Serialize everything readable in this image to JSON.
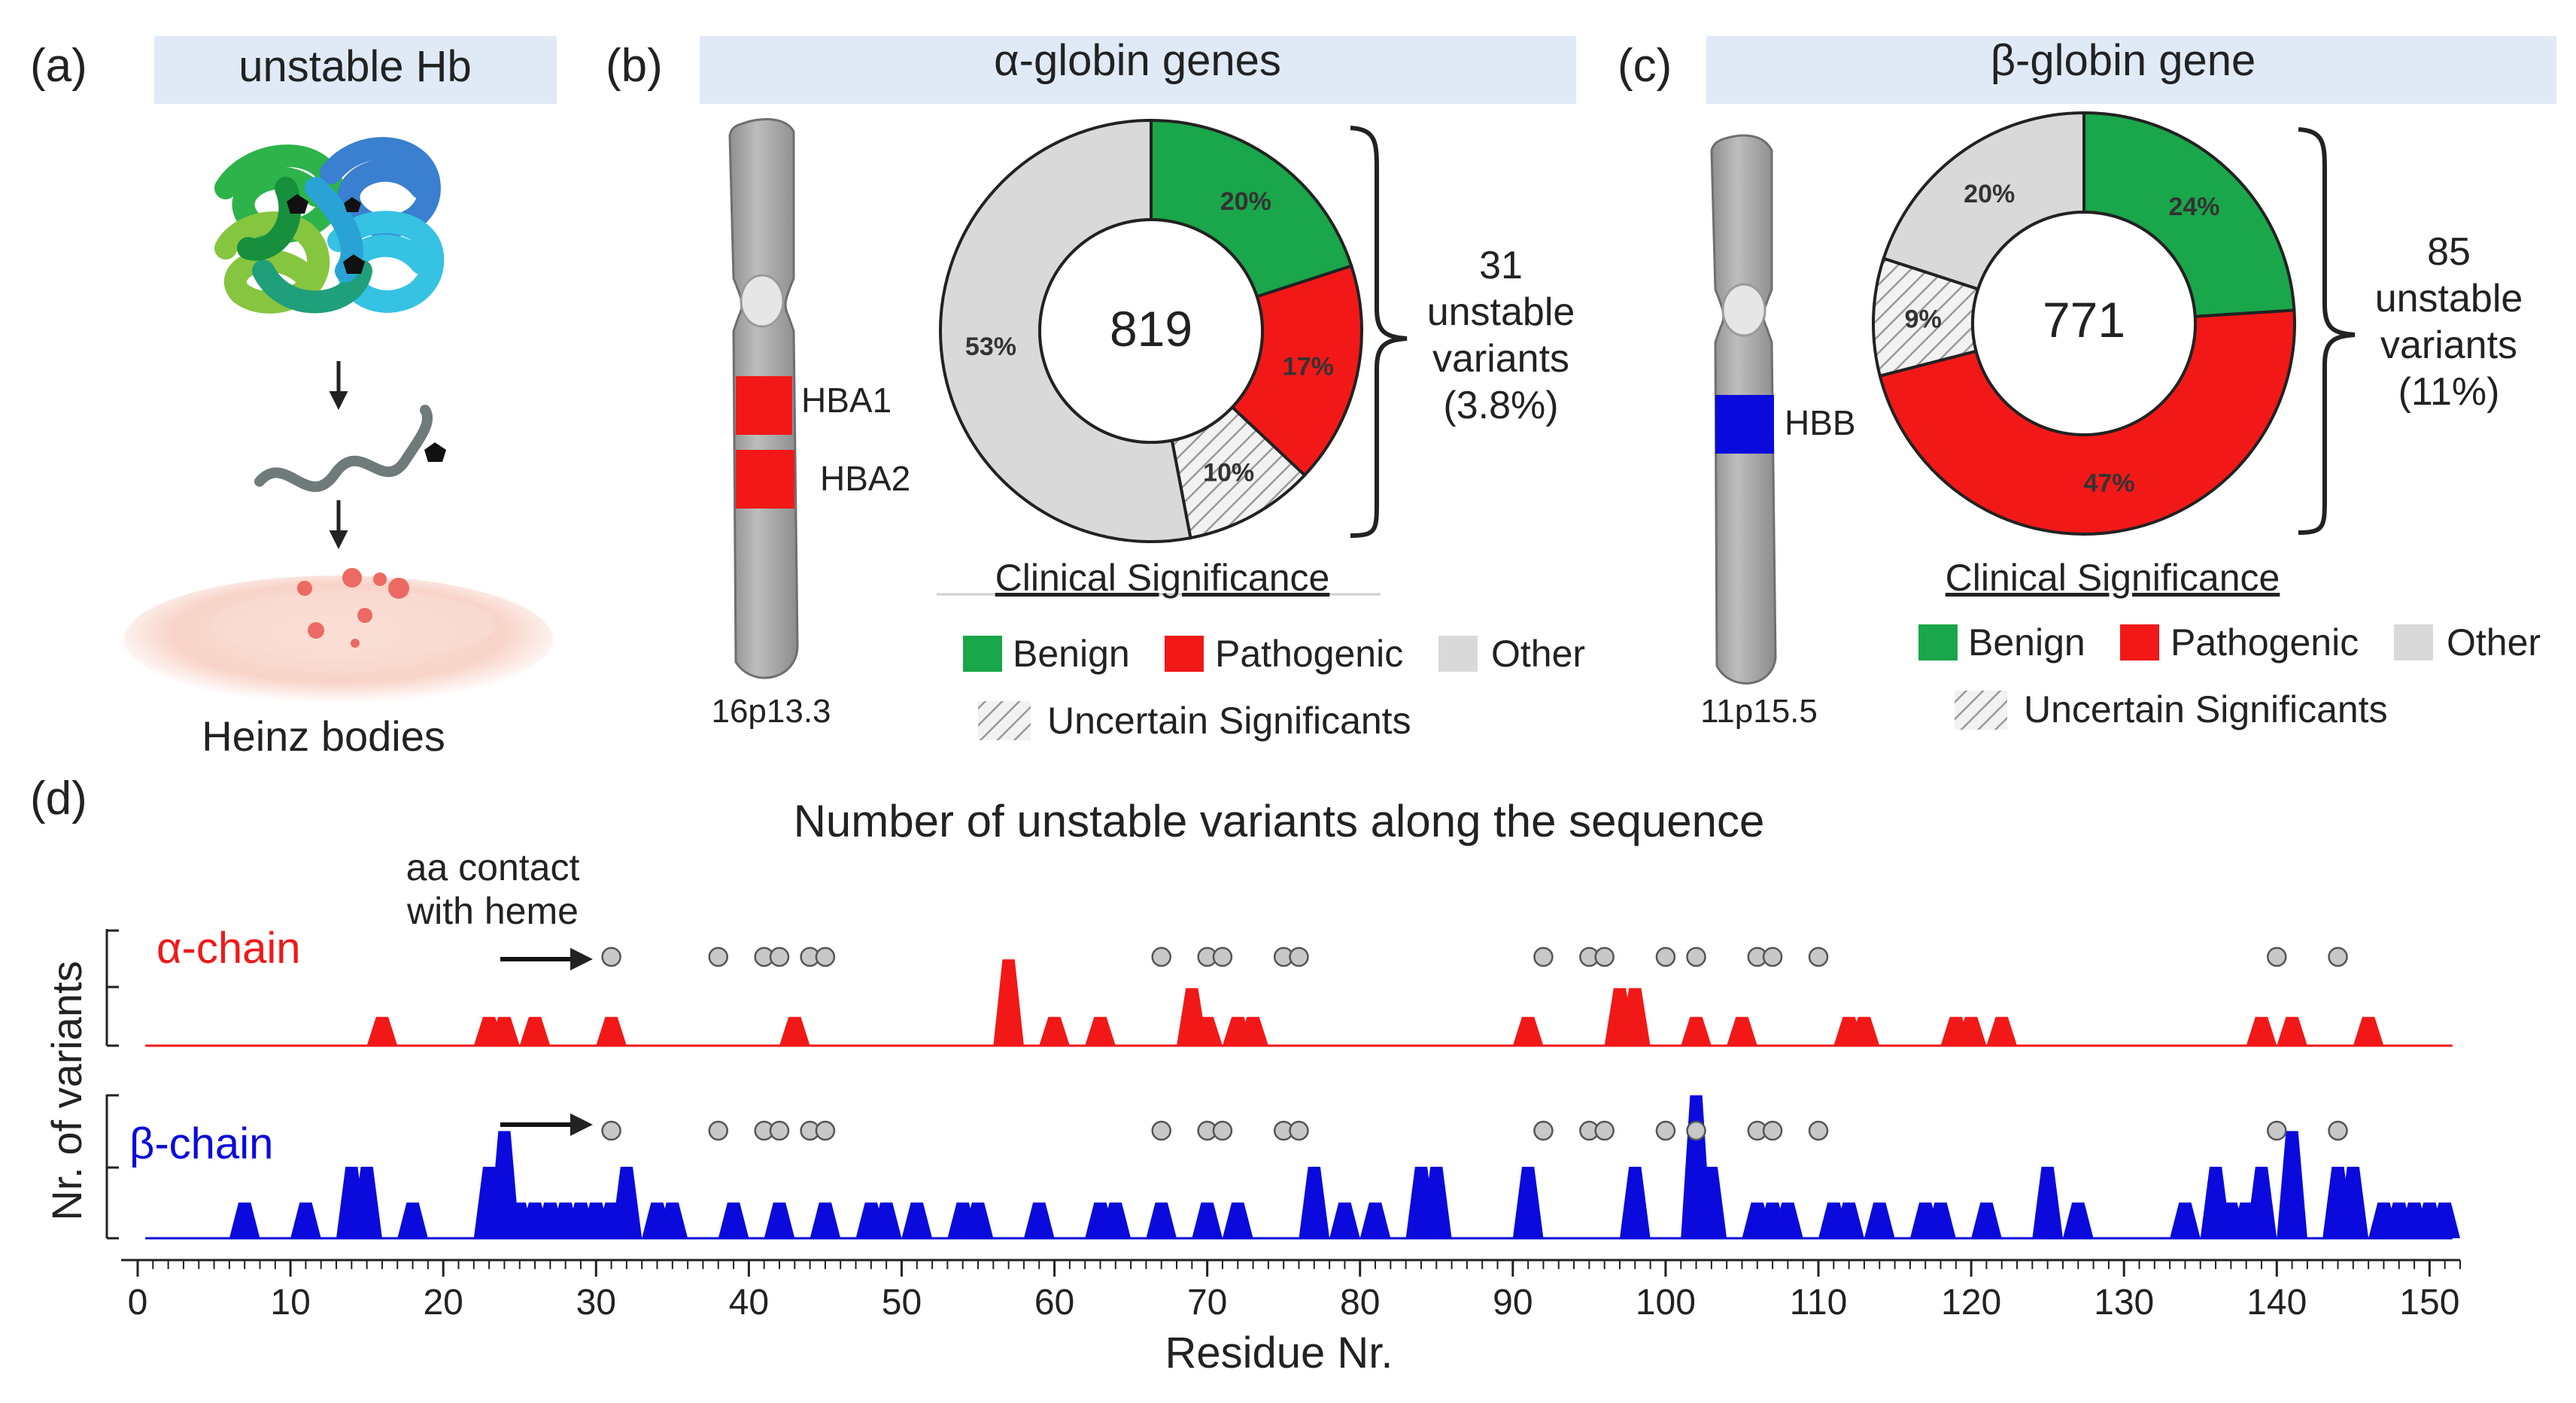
{
  "panel_a": {
    "letter": "(a)",
    "header": "unstable Hb",
    "caption": "Heinz bodies"
  },
  "panel_b": {
    "letter": "(b)",
    "header": "α-globin genes",
    "gene1": "HBA1",
    "gene2": "HBA2",
    "locus": "16p13.3",
    "donut": {
      "total": "819",
      "slices": [
        {
          "category": "Benign",
          "percent": 20,
          "label": "20%",
          "color": "#1aa64a"
        },
        {
          "category": "Pathogenic",
          "percent": 17,
          "label": "17%",
          "color": "#f21818"
        },
        {
          "category": "Uncertain Significants",
          "percent": 10,
          "label": "10%",
          "color": "#d9d9d9"
        },
        {
          "category": "Other",
          "percent": 53,
          "label": "53%",
          "color": "#d9d9d9"
        }
      ]
    },
    "brace_lines": [
      "31",
      "unstable",
      "variants",
      "(3.8%)"
    ],
    "legend_title": "Clinical Significance",
    "legend": {
      "benign": "Benign",
      "pathogenic": "Pathogenic",
      "other": "Other",
      "uncertain": "Uncertain Significants"
    }
  },
  "panel_c": {
    "letter": "(c)",
    "header": "β-globin gene",
    "gene": "HBB",
    "locus": "11p15.5",
    "donut": {
      "total": "771",
      "slices": [
        {
          "category": "Benign",
          "percent": 24,
          "label": "24%",
          "color": "#1aa64a"
        },
        {
          "category": "Pathogenic",
          "percent": 47,
          "label": "47%",
          "color": "#f21818"
        },
        {
          "category": "Uncertain Significants",
          "percent": 9,
          "label": "9%",
          "color": "#d9d9d9"
        },
        {
          "category": "Other",
          "percent": 20,
          "label": "20%",
          "color": "#d9d9d9"
        }
      ]
    },
    "brace_lines": [
      "85",
      "unstable",
      "variants",
      "(11%)"
    ],
    "legend_title": "Clinical Significance",
    "legend": {
      "benign": "Benign",
      "pathogenic": "Pathogenic",
      "other": "Other",
      "uncertain": "Uncertain Significants"
    }
  },
  "panel_d": {
    "letter": "(d)",
    "title": "Number of unstable variants along the sequence",
    "heme_note": [
      "aa contact",
      "with heme"
    ],
    "ylabel": "Nr. of variants",
    "xlabel": "Residue Nr.",
    "alpha_label": "α-chain",
    "beta_label": "β-chain",
    "alpha_color": "#f21818",
    "beta_color": "#0a0adc"
  },
  "chart_data": {
    "type": "area",
    "title": "Number of unstable variants along the sequence",
    "xlabel": "Residue Nr.",
    "ylabel": "Nr. of variants",
    "xlim": [
      0,
      152
    ],
    "x_ticks": [
      0,
      10,
      20,
      30,
      40,
      50,
      60,
      70,
      80,
      90,
      100,
      110,
      120,
      130,
      140,
      150
    ],
    "ylim": [
      0,
      2
    ],
    "heme_contact_residues": [
      31,
      38,
      41,
      42,
      44,
      45,
      67,
      70,
      71,
      75,
      76,
      92,
      95,
      96,
      100,
      102,
      106,
      107,
      110,
      140,
      144
    ],
    "series": [
      {
        "name": "α-chain",
        "peaks": [
          [
            16,
            0.5
          ],
          [
            23,
            0.5
          ],
          [
            24,
            0.5
          ],
          [
            26,
            0.5
          ],
          [
            31,
            0.5
          ],
          [
            43,
            0.5
          ],
          [
            57,
            1.5
          ],
          [
            60,
            0.5
          ],
          [
            63,
            0.5
          ],
          [
            69,
            1
          ],
          [
            70,
            0.5
          ],
          [
            72,
            0.5
          ],
          [
            73,
            0.5
          ],
          [
            91,
            0.5
          ],
          [
            97,
            1
          ],
          [
            98,
            1
          ],
          [
            102,
            0.5
          ],
          [
            105,
            0.5
          ],
          [
            112,
            0.5
          ],
          [
            113,
            0.5
          ],
          [
            119,
            0.5
          ],
          [
            120,
            0.5
          ],
          [
            122,
            0.5
          ],
          [
            139,
            0.5
          ],
          [
            141,
            0.5
          ],
          [
            146,
            0.5
          ]
        ]
      },
      {
        "name": "β-chain",
        "peaks": [
          [
            7,
            0.5
          ],
          [
            11,
            0.5
          ],
          [
            14,
            1
          ],
          [
            15,
            1
          ],
          [
            18,
            0.5
          ],
          [
            23,
            1
          ],
          [
            24,
            1.5
          ],
          [
            25,
            0.5
          ],
          [
            26,
            0.5
          ],
          [
            27,
            0.5
          ],
          [
            28,
            0.5
          ],
          [
            29,
            0.5
          ],
          [
            30,
            0.5
          ],
          [
            31,
            0.5
          ],
          [
            32,
            1
          ],
          [
            34,
            0.5
          ],
          [
            35,
            0.5
          ],
          [
            39,
            0.5
          ],
          [
            42,
            0.5
          ],
          [
            45,
            0.5
          ],
          [
            48,
            0.5
          ],
          [
            49,
            0.5
          ],
          [
            51,
            0.5
          ],
          [
            54,
            0.5
          ],
          [
            55,
            0.5
          ],
          [
            59,
            0.5
          ],
          [
            63,
            0.5
          ],
          [
            64,
            0.5
          ],
          [
            67,
            0.5
          ],
          [
            70,
            0.5
          ],
          [
            72,
            0.5
          ],
          [
            77,
            1
          ],
          [
            79,
            0.5
          ],
          [
            81,
            0.5
          ],
          [
            84,
            1
          ],
          [
            85,
            1
          ],
          [
            91,
            1
          ],
          [
            98,
            1
          ],
          [
            102,
            2
          ],
          [
            103,
            1
          ],
          [
            106,
            0.5
          ],
          [
            107,
            0.5
          ],
          [
            108,
            0.5
          ],
          [
            111,
            0.5
          ],
          [
            112,
            0.5
          ],
          [
            114,
            0.5
          ],
          [
            117,
            0.5
          ],
          [
            118,
            0.5
          ],
          [
            121,
            0.5
          ],
          [
            125,
            1
          ],
          [
            127,
            0.5
          ],
          [
            134,
            0.5
          ],
          [
            136,
            1
          ],
          [
            137,
            0.5
          ],
          [
            138,
            0.5
          ],
          [
            139,
            1
          ],
          [
            141,
            1.5
          ],
          [
            144,
            1
          ],
          [
            145,
            1
          ],
          [
            147,
            0.5
          ],
          [
            148,
            0.5
          ],
          [
            149,
            0.5
          ],
          [
            150,
            0.5
          ],
          [
            151,
            0.5
          ]
        ]
      }
    ]
  }
}
